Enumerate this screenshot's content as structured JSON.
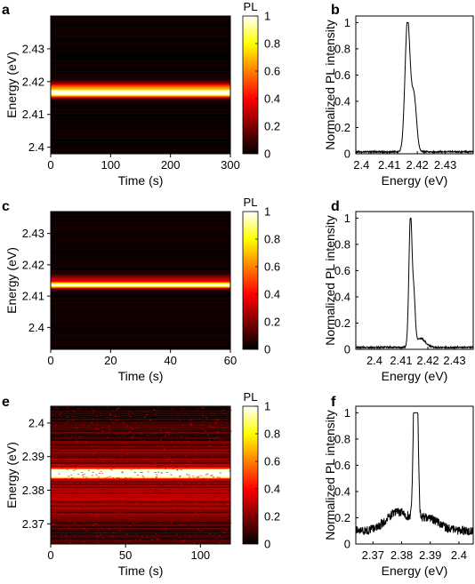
{
  "colors": {
    "axis": "#000000",
    "trace": "#000000",
    "panel_background": "#000000"
  },
  "chart_data": [
    {
      "panel": "a",
      "type": "heatmap",
      "xlabel": "Time (s)",
      "ylabel": "Energy (eV)",
      "xlim": [
        0,
        300
      ],
      "ylim": [
        2.398,
        2.44
      ],
      "xticks": [
        "0",
        "100",
        "200",
        "300"
      ],
      "xtick_values": [
        0,
        100,
        200,
        300
      ],
      "yticks": [
        "2.4",
        "2.41",
        "2.42",
        "2.43"
      ],
      "ytick_values": [
        2.4,
        2.41,
        2.42,
        2.43
      ],
      "colorbar": {
        "label": "PL",
        "range": [
          0,
          1
        ],
        "ticks": [
          "0",
          "0.2",
          "0.4",
          "0.6",
          "0.8",
          "1"
        ],
        "tick_values": [
          0,
          0.2,
          0.4,
          0.6,
          0.8,
          1
        ]
      },
      "bands": [
        {
          "energy": 2.4165,
          "width": 0.0009,
          "intensity": 1.0
        },
        {
          "energy": 2.4185,
          "width": 0.0009,
          "intensity": 0.42
        }
      ],
      "noise": 0.04
    },
    {
      "panel": "b",
      "type": "line",
      "xlabel": "Energy (eV)",
      "ylabel": "Normalized PL intensity",
      "xlim": [
        2.398,
        2.44
      ],
      "ylim": [
        0,
        1.05
      ],
      "xticks": [
        "2.4",
        "2.41",
        "2.42",
        "2.43"
      ],
      "xtick_values": [
        2.4,
        2.41,
        2.42,
        2.43
      ],
      "yticks": [
        "0",
        "0.2",
        "0.4",
        "0.6",
        "0.8",
        "1"
      ],
      "ytick_values": [
        0,
        0.2,
        0.4,
        0.6,
        0.8,
        1
      ],
      "peaks": [
        {
          "energy": 2.4165,
          "width": 0.0009,
          "height": 1.0
        },
        {
          "energy": 2.4188,
          "width": 0.0009,
          "height": 0.42
        }
      ],
      "baseline": 0.015
    },
    {
      "panel": "c",
      "type": "heatmap",
      "xlabel": "Time (s)",
      "ylabel": "Energy (eV)",
      "xlim": [
        0,
        60
      ],
      "ylim": [
        2.393,
        2.437
      ],
      "xticks": [
        "0",
        "20",
        "40",
        "60"
      ],
      "xtick_values": [
        0,
        20,
        40,
        60
      ],
      "yticks": [
        "2.4",
        "2.41",
        "2.42",
        "2.43"
      ],
      "ytick_values": [
        2.4,
        2.41,
        2.42,
        2.43
      ],
      "colorbar": {
        "label": "PL",
        "range": [
          0,
          1
        ],
        "ticks": [
          "0",
          "0.2",
          "0.4",
          "0.6",
          "0.8",
          "1"
        ],
        "tick_values": [
          0,
          0.2,
          0.4,
          0.6,
          0.8,
          1
        ]
      },
      "bands": [
        {
          "energy": 2.4135,
          "width": 0.0007,
          "intensity": 0.95
        },
        {
          "energy": 2.4155,
          "width": 0.0009,
          "intensity": 0.25
        }
      ],
      "noise": 0.04
    },
    {
      "panel": "d",
      "type": "line",
      "xlabel": "Energy (eV)",
      "ylabel": "Normalized PL intensity",
      "xlim": [
        2.393,
        2.437
      ],
      "ylim": [
        0,
        1.05
      ],
      "xticks": [
        "2.4",
        "2.41",
        "2.42",
        "2.43"
      ],
      "xtick_values": [
        2.4,
        2.41,
        2.42,
        2.43
      ],
      "yticks": [
        "0",
        "0.2",
        "0.4",
        "0.6",
        "0.8",
        "1"
      ],
      "ytick_values": [
        0,
        0.2,
        0.4,
        0.6,
        0.8,
        1
      ],
      "peaks": [
        {
          "energy": 2.4135,
          "width": 0.0006,
          "height": 1.0
        },
        {
          "energy": 2.4148,
          "width": 0.0005,
          "height": 0.33
        },
        {
          "energy": 2.4172,
          "width": 0.0018,
          "height": 0.07
        }
      ],
      "baseline": 0.015
    },
    {
      "panel": "e",
      "type": "heatmap",
      "xlabel": "Time (s)",
      "ylabel": "Energy (eV)",
      "xlim": [
        0,
        120
      ],
      "ylim": [
        2.364,
        2.405
      ],
      "xticks": [
        "0",
        "50",
        "100"
      ],
      "xtick_values": [
        0,
        50,
        100
      ],
      "yticks": [
        "2.37",
        "2.38",
        "2.39",
        "2.4"
      ],
      "ytick_values": [
        2.37,
        2.38,
        2.39,
        2.4
      ],
      "colorbar": {
        "label": "PL",
        "range": [
          0,
          1
        ],
        "ticks": [
          "0",
          "0.2",
          "0.4",
          "0.6",
          "0.8",
          "1"
        ],
        "tick_values": [
          0,
          0.2,
          0.4,
          0.6,
          0.8,
          1
        ]
      },
      "bands": [
        {
          "energy": 2.3845,
          "width": 0.0007,
          "intensity": 0.9
        },
        {
          "energy": 2.3855,
          "width": 0.0007,
          "intensity": 0.85
        },
        {
          "energy": 2.378,
          "width": 0.005,
          "intensity": 0.18
        },
        {
          "energy": 2.389,
          "width": 0.004,
          "intensity": 0.12
        }
      ],
      "noise": 0.16
    },
    {
      "panel": "f",
      "type": "line",
      "xlabel": "Energy (eV)",
      "ylabel": "Normalized PL intensity",
      "xlim": [
        2.364,
        2.405
      ],
      "ylim": [
        0,
        1.05
      ],
      "xticks": [
        "2.37",
        "2.38",
        "2.39",
        "2.4"
      ],
      "xtick_values": [
        2.37,
        2.38,
        2.39,
        2.4
      ],
      "yticks": [
        "0",
        "0.2",
        "0.4",
        "0.6",
        "0.8",
        "1"
      ],
      "ytick_values": [
        0,
        0.2,
        0.4,
        0.6,
        0.8,
        1
      ],
      "peaks": [
        {
          "energy": 2.3845,
          "width": 0.0005,
          "height": 0.95
        },
        {
          "energy": 2.3853,
          "width": 0.0005,
          "height": 0.98
        },
        {
          "energy": 2.3785,
          "width": 0.004,
          "height": 0.14
        },
        {
          "energy": 2.389,
          "width": 0.004,
          "height": 0.1
        }
      ],
      "baseline": 0.1,
      "noise": 0.07
    }
  ]
}
